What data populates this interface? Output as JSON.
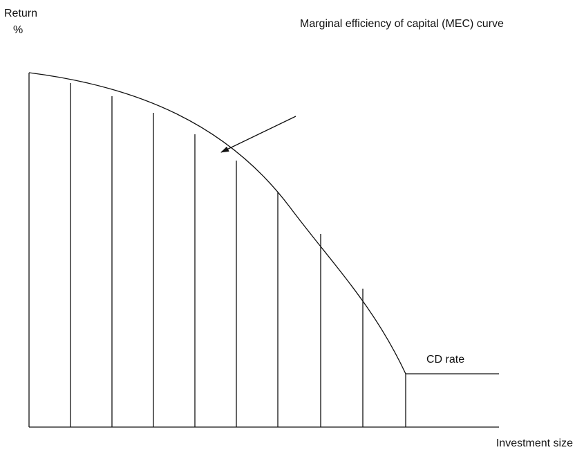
{
  "axis": {
    "y_label": "Return",
    "y_unit": "%",
    "x_label": "Investment size"
  },
  "annotations": {
    "curve": "Marginal efficiency of capital (MEC) curve",
    "floor": "CD rate"
  }
}
